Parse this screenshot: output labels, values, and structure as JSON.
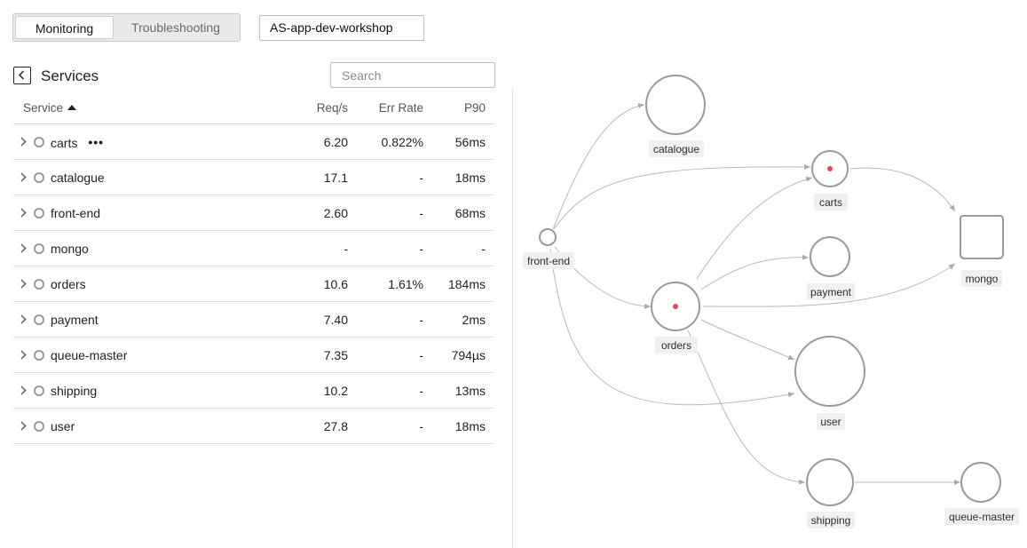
{
  "tabs": {
    "monitoring": "Monitoring",
    "troubleshooting": "Troubleshooting"
  },
  "environment": "AS-app-dev-workshop",
  "panel": {
    "title": "Services",
    "search_placeholder": "Search"
  },
  "table": {
    "headers": {
      "service": "Service",
      "req": "Req/s",
      "err": "Err Rate",
      "p90": "P90"
    },
    "rows": [
      {
        "name": "carts",
        "req": "6.20",
        "err": "0.822%",
        "p90": "56ms"
      },
      {
        "name": "catalogue",
        "req": "17.1",
        "err": "-",
        "p90": "18ms"
      },
      {
        "name": "front-end",
        "req": "2.60",
        "err": "-",
        "p90": "68ms"
      },
      {
        "name": "mongo",
        "req": "-",
        "err": "-",
        "p90": "-"
      },
      {
        "name": "orders",
        "req": "10.6",
        "err": "1.61%",
        "p90": "184ms"
      },
      {
        "name": "payment",
        "req": "7.40",
        "err": "-",
        "p90": "2ms"
      },
      {
        "name": "queue-master",
        "req": "7.35",
        "err": "-",
        "p90": "794µs"
      },
      {
        "name": "shipping",
        "req": "10.2",
        "err": "-",
        "p90": "13ms"
      },
      {
        "name": "user",
        "req": "27.8",
        "err": "-",
        "p90": "18ms"
      }
    ],
    "more_glyph": "•••"
  },
  "map": {
    "nodes": {
      "catalogue": "catalogue",
      "carts": "carts",
      "front_end": "front-end",
      "payment": "payment",
      "mongo": "mongo",
      "orders": "orders",
      "user": "user",
      "shipping": "shipping",
      "queue_master": "queue-master"
    },
    "error_color": "#e0475b",
    "node_stroke": "#9a9a9a"
  }
}
